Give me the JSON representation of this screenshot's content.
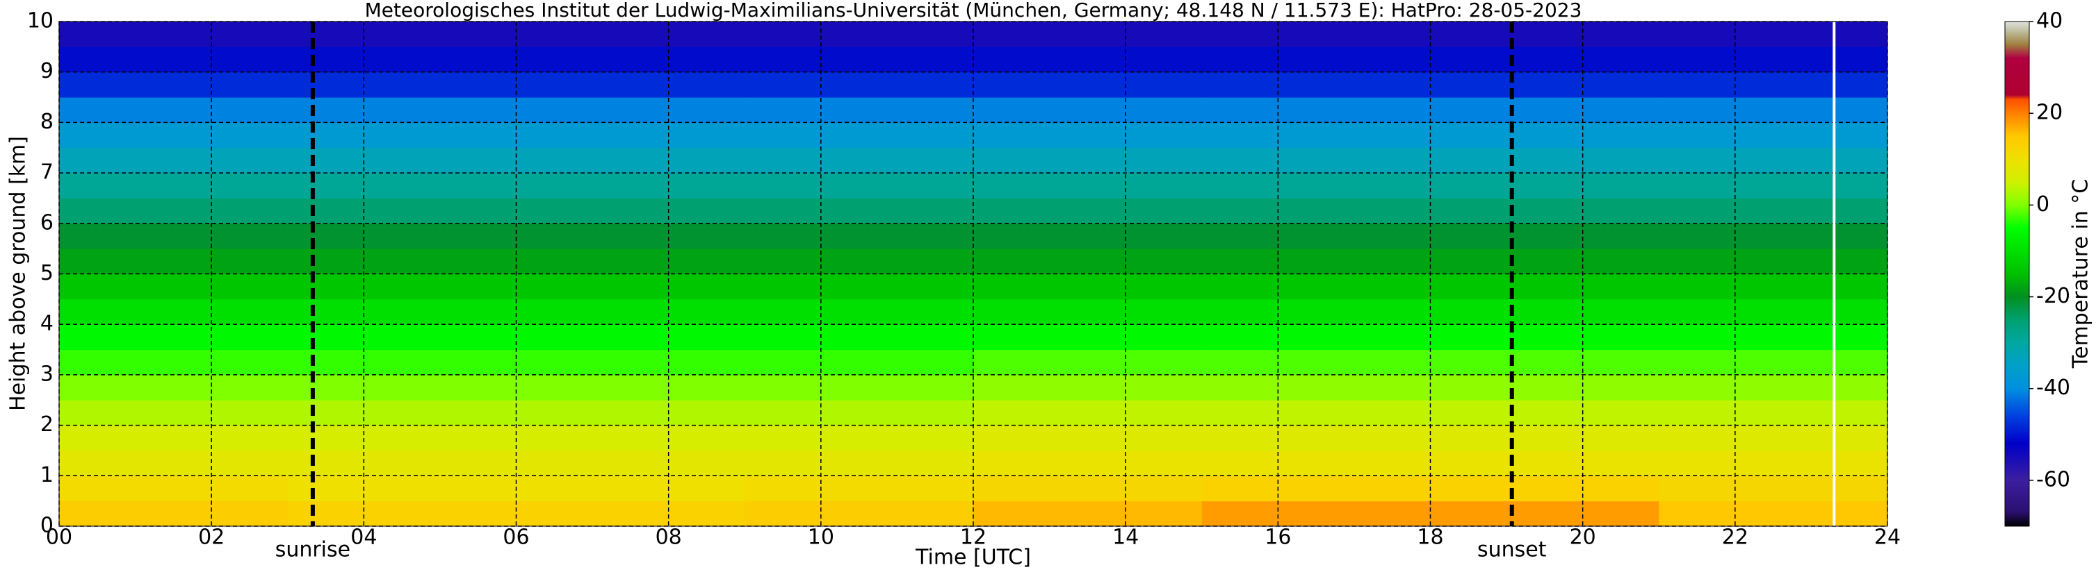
{
  "chart_data": {
    "type": "heatmap",
    "title": "Meteorologisches Institut der Ludwig-Maximilians-Universität (München, Germany; 48.148 N / 11.573 E):    HatPro: 28-05-2023",
    "xlabel": "Time [UTC]",
    "ylabel": "Height above ground [km]",
    "colorbar_label": "Temperature in °C",
    "xbins": [
      0,
      3,
      6,
      9,
      12,
      15,
      18,
      21,
      24
    ],
    "ybins": [
      0,
      0.5,
      1,
      1.5,
      2,
      2.5,
      3,
      3.5,
      4,
      4.5,
      5,
      5.5,
      6,
      6.5,
      7,
      7.5,
      8,
      8.5,
      9,
      9.5,
      10
    ],
    "z": [
      [
        14,
        13,
        13,
        14,
        16,
        18,
        18,
        15
      ],
      [
        11,
        10,
        10,
        11,
        12,
        13,
        13,
        12
      ],
      [
        8,
        8,
        8,
        8,
        9,
        9,
        9,
        9
      ],
      [
        6,
        6,
        6,
        6,
        7,
        7,
        7,
        7
      ],
      [
        3,
        3,
        3,
        3,
        4,
        4,
        4,
        4
      ],
      [
        0,
        0,
        0,
        0,
        1,
        1,
        1,
        1
      ],
      [
        -3,
        -3,
        -3,
        -3,
        -2,
        -2,
        -2,
        -2
      ],
      [
        -6,
        -6,
        -6,
        -6,
        -6,
        -6,
        -6,
        -6
      ],
      [
        -10,
        -10,
        -10,
        -10,
        -10,
        -10,
        -10,
        -10
      ],
      [
        -14,
        -14,
        -14,
        -14,
        -14,
        -14,
        -14,
        -14
      ],
      [
        -18,
        -18,
        -18,
        -18,
        -18,
        -18,
        -18,
        -18
      ],
      [
        -21,
        -21,
        -21,
        -21,
        -21,
        -21,
        -21,
        -21
      ],
      [
        -25,
        -25,
        -25,
        -25,
        -25,
        -25,
        -25,
        -25
      ],
      [
        -29,
        -29,
        -29,
        -29,
        -29,
        -29,
        -29,
        -29
      ],
      [
        -33,
        -33,
        -33,
        -33,
        -33,
        -33,
        -33,
        -33
      ],
      [
        -37,
        -37,
        -37,
        -37,
        -37,
        -37,
        -37,
        -37
      ],
      [
        -41,
        -41,
        -41,
        -41,
        -41,
        -41,
        -41,
        -41
      ],
      [
        -48,
        -48,
        -48,
        -48,
        -48,
        -48,
        -48,
        -48
      ],
      [
        -51,
        -51,
        -51,
        -51,
        -51,
        -51,
        -51,
        -51
      ],
      [
        -55,
        -55,
        -55,
        -55,
        -55,
        -55,
        -55,
        -55
      ]
    ],
    "xlim": [
      0,
      24
    ],
    "ylim": [
      0,
      10
    ],
    "xticks": [
      {
        "value": 0,
        "label": "00"
      },
      {
        "value": 2,
        "label": "02"
      },
      {
        "value": 4,
        "label": "04"
      },
      {
        "value": 6,
        "label": "06"
      },
      {
        "value": 8,
        "label": "08"
      },
      {
        "value": 10,
        "label": "10"
      },
      {
        "value": 12,
        "label": "12"
      },
      {
        "value": 14,
        "label": "14"
      },
      {
        "value": 16,
        "label": "16"
      },
      {
        "value": 18,
        "label": "18"
      },
      {
        "value": 20,
        "label": "20"
      },
      {
        "value": 22,
        "label": "22"
      },
      {
        "value": 24,
        "label": "24"
      }
    ],
    "yticks": [
      0,
      1,
      2,
      3,
      4,
      5,
      6,
      7,
      8,
      9,
      10
    ],
    "clim": [
      -70,
      40
    ],
    "cticks": [
      -60,
      -40,
      -20,
      0,
      20,
      40
    ],
    "colormap": [
      [
        -70,
        "#000000"
      ],
      [
        -67,
        "#2a0f6e"
      ],
      [
        -60,
        "#3c1ea0"
      ],
      [
        -52,
        "#0000c8"
      ],
      [
        -46,
        "#0040e0"
      ],
      [
        -40,
        "#0090e0"
      ],
      [
        -35,
        "#00a0c8"
      ],
      [
        -30,
        "#00a8a0"
      ],
      [
        -25,
        "#00a070"
      ],
      [
        -20,
        "#009020"
      ],
      [
        -15,
        "#00c000"
      ],
      [
        -10,
        "#00e000"
      ],
      [
        -5,
        "#00ff00"
      ],
      [
        0,
        "#80ff00"
      ],
      [
        5,
        "#d0f000"
      ],
      [
        10,
        "#f0e000"
      ],
      [
        15,
        "#ffc800"
      ],
      [
        20,
        "#ff8000"
      ],
      [
        23,
        "#ff5000"
      ],
      [
        24,
        "#b00030"
      ],
      [
        32,
        "#b00040"
      ],
      [
        35,
        "#a08040"
      ],
      [
        38,
        "#c0c0a0"
      ],
      [
        40,
        "#e0e0e0"
      ]
    ],
    "grid": true,
    "sunrise": 3.33,
    "sunrise_label": "sunrise",
    "sunset": 19.07,
    "sunset_label": "sunset",
    "data_end": 23.3
  }
}
